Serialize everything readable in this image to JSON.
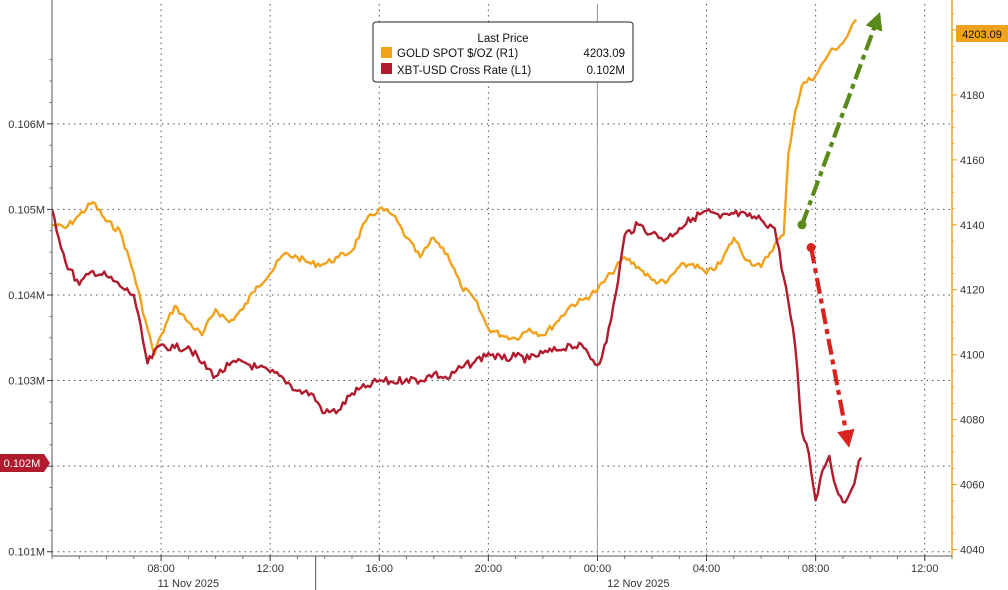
{
  "chart_data": {
    "type": "line",
    "legend": {
      "title": "Last Price",
      "placement": "top-center",
      "entries": [
        {
          "name": "GOLD SPOT $/OZ  (R1)",
          "value": "4203.09",
          "color": "#f0a21c"
        },
        {
          "name": "XBT-USD Cross Rate  (L1)",
          "value": "0.102M",
          "color": "#b01c2e"
        }
      ]
    },
    "x_axis": {
      "start": "2025-11-11T04:00",
      "end": "2025-11-12T13:00",
      "tick_labels": [
        "08:00",
        "12:00",
        "16:00",
        "20:00",
        "00:00",
        "04:00",
        "08:00",
        "12:00"
      ],
      "tick_times": [
        "2025-11-11T08:00",
        "2025-11-11T12:00",
        "2025-11-11T16:00",
        "2025-11-11T20:00",
        "2025-11-12T00:00",
        "2025-11-12T04:00",
        "2025-11-12T08:00",
        "2025-11-12T12:00"
      ],
      "date_labels": [
        {
          "time": "2025-11-11T09:00",
          "text": "11 Nov 2025"
        },
        {
          "time": "2025-11-12T01:30",
          "text": "12 Nov 2025"
        }
      ],
      "day_boundary": "2025-11-12T00:00"
    },
    "y_left": {
      "unit": "M",
      "ylim": [
        0.10095,
        0.1074
      ],
      "tick_values": [
        0.101,
        0.102,
        0.103,
        0.104,
        0.105,
        0.106
      ],
      "tick_labels": [
        "0.101M",
        "0.102M",
        "0.103M",
        "0.104M",
        "0.105M",
        "0.106M"
      ],
      "last_value_badge": "0.102M"
    },
    "y_right": {
      "ylim": [
        4038,
        4208
      ],
      "tick_values": [
        4040,
        4060,
        4080,
        4100,
        4120,
        4140,
        4160,
        4180,
        4200
      ],
      "tick_labels": [
        "4040",
        "4060",
        "4080",
        "4100",
        "4120",
        "4140",
        "4160",
        "4180",
        "4200"
      ],
      "last_value_badge": "4203.09"
    },
    "grid": true,
    "series": [
      {
        "name": "GOLD SPOT $/OZ  (R1)",
        "axis": "right",
        "color": "#f0a21c",
        "points": [
          [
            "2025-11-11T04:00",
            4140
          ],
          [
            "2025-11-11T04:30",
            4139
          ],
          [
            "2025-11-11T05:00",
            4143
          ],
          [
            "2025-11-11T05:30",
            4147
          ],
          [
            "2025-11-11T06:00",
            4141
          ],
          [
            "2025-11-11T06:30",
            4138
          ],
          [
            "2025-11-11T07:00",
            4125
          ],
          [
            "2025-11-11T07:30",
            4108
          ],
          [
            "2025-11-11T07:45",
            4100
          ],
          [
            "2025-11-11T08:00",
            4106
          ],
          [
            "2025-11-11T08:30",
            4115
          ],
          [
            "2025-11-11T09:00",
            4110
          ],
          [
            "2025-11-11T09:30",
            4106
          ],
          [
            "2025-11-11T10:00",
            4114
          ],
          [
            "2025-11-11T10:30",
            4110
          ],
          [
            "2025-11-11T11:00",
            4114
          ],
          [
            "2025-11-11T11:30",
            4121
          ],
          [
            "2025-11-11T12:00",
            4125
          ],
          [
            "2025-11-11T12:30",
            4131
          ],
          [
            "2025-11-11T13:00",
            4130
          ],
          [
            "2025-11-11T13:30",
            4128
          ],
          [
            "2025-11-11T14:00",
            4128
          ],
          [
            "2025-11-11T14:30",
            4130
          ],
          [
            "2025-11-11T15:00",
            4132
          ],
          [
            "2025-11-11T15:30",
            4141
          ],
          [
            "2025-11-11T16:00",
            4145
          ],
          [
            "2025-11-11T16:30",
            4143
          ],
          [
            "2025-11-11T17:00",
            4136
          ],
          [
            "2025-11-11T17:30",
            4130
          ],
          [
            "2025-11-11T18:00",
            4136
          ],
          [
            "2025-11-11T18:30",
            4131
          ],
          [
            "2025-11-11T19:00",
            4121
          ],
          [
            "2025-11-11T19:30",
            4117
          ],
          [
            "2025-11-11T20:00",
            4108
          ],
          [
            "2025-11-11T20:30",
            4106
          ],
          [
            "2025-11-11T21:00",
            4105
          ],
          [
            "2025-11-11T21:30",
            4108
          ],
          [
            "2025-11-11T22:00",
            4106
          ],
          [
            "2025-11-11T22:30",
            4110
          ],
          [
            "2025-11-11T23:00",
            4115
          ],
          [
            "2025-11-11T23:30",
            4117
          ],
          [
            "2025-11-12T00:00",
            4120
          ],
          [
            "2025-11-12T00:30",
            4125
          ],
          [
            "2025-11-12T01:00",
            4130
          ],
          [
            "2025-11-12T01:30",
            4127
          ],
          [
            "2025-11-12T02:00",
            4123
          ],
          [
            "2025-11-12T02:30",
            4122
          ],
          [
            "2025-11-12T03:00",
            4127
          ],
          [
            "2025-11-12T03:30",
            4128
          ],
          [
            "2025-11-12T04:00",
            4125
          ],
          [
            "2025-11-12T04:30",
            4128
          ],
          [
            "2025-11-12T05:00",
            4136
          ],
          [
            "2025-11-12T05:30",
            4129
          ],
          [
            "2025-11-12T06:00",
            4127
          ],
          [
            "2025-11-12T06:30",
            4134
          ],
          [
            "2025-11-12T06:50",
            4137
          ],
          [
            "2025-11-12T07:00",
            4162
          ],
          [
            "2025-11-12T07:15",
            4175
          ],
          [
            "2025-11-12T07:30",
            4183
          ],
          [
            "2025-11-12T08:00",
            4186
          ],
          [
            "2025-11-12T08:30",
            4193
          ],
          [
            "2025-11-12T09:00",
            4196
          ],
          [
            "2025-11-12T09:30",
            4203.09
          ]
        ]
      },
      {
        "name": "XBT-USD Cross Rate  (L1)",
        "axis": "left",
        "color": "#b01c2e",
        "points": [
          [
            "2025-11-11T04:00",
            0.105
          ],
          [
            "2025-11-11T04:30",
            0.10438
          ],
          [
            "2025-11-11T05:00",
            0.10412
          ],
          [
            "2025-11-11T05:30",
            0.10428
          ],
          [
            "2025-11-11T06:00",
            0.10422
          ],
          [
            "2025-11-11T06:30",
            0.1041
          ],
          [
            "2025-11-11T07:00",
            0.104
          ],
          [
            "2025-11-11T07:30",
            0.1032
          ],
          [
            "2025-11-11T08:00",
            0.10342
          ],
          [
            "2025-11-11T08:30",
            0.10338
          ],
          [
            "2025-11-11T09:00",
            0.1034
          ],
          [
            "2025-11-11T09:30",
            0.1032
          ],
          [
            "2025-11-11T10:00",
            0.10305
          ],
          [
            "2025-11-11T10:30",
            0.10318
          ],
          [
            "2025-11-11T11:00",
            0.10322
          ],
          [
            "2025-11-11T11:30",
            0.10315
          ],
          [
            "2025-11-11T12:00",
            0.1031
          ],
          [
            "2025-11-11T12:30",
            0.10302
          ],
          [
            "2025-11-11T13:00",
            0.10288
          ],
          [
            "2025-11-11T13:30",
            0.10285
          ],
          [
            "2025-11-11T14:00",
            0.10262
          ],
          [
            "2025-11-11T14:30",
            0.10265
          ],
          [
            "2025-11-11T15:00",
            0.10285
          ],
          [
            "2025-11-11T15:30",
            0.10292
          ],
          [
            "2025-11-11T16:00",
            0.103
          ],
          [
            "2025-11-11T16:30",
            0.10298
          ],
          [
            "2025-11-11T17:00",
            0.10302
          ],
          [
            "2025-11-11T17:30",
            0.103
          ],
          [
            "2025-11-11T18:00",
            0.10308
          ],
          [
            "2025-11-11T18:30",
            0.10302
          ],
          [
            "2025-11-11T19:00",
            0.10315
          ],
          [
            "2025-11-11T19:30",
            0.10322
          ],
          [
            "2025-11-11T20:00",
            0.10332
          ],
          [
            "2025-11-11T20:30",
            0.10325
          ],
          [
            "2025-11-11T21:00",
            0.10328
          ],
          [
            "2025-11-11T21:30",
            0.10325
          ],
          [
            "2025-11-11T22:00",
            0.10332
          ],
          [
            "2025-11-11T22:30",
            0.10335
          ],
          [
            "2025-11-11T23:00",
            0.10342
          ],
          [
            "2025-11-11T23:30",
            0.10338
          ],
          [
            "2025-11-12T00:00",
            0.10318
          ],
          [
            "2025-11-12T00:20",
            0.10345
          ],
          [
            "2025-11-12T00:40",
            0.104
          ],
          [
            "2025-11-12T01:00",
            0.1047
          ],
          [
            "2025-11-12T01:30",
            0.10482
          ],
          [
            "2025-11-12T02:00",
            0.10472
          ],
          [
            "2025-11-12T02:30",
            0.10465
          ],
          [
            "2025-11-12T03:00",
            0.10478
          ],
          [
            "2025-11-12T03:30",
            0.1049
          ],
          [
            "2025-11-12T04:00",
            0.10498
          ],
          [
            "2025-11-12T04:30",
            0.1049
          ],
          [
            "2025-11-12T05:00",
            0.10495
          ],
          [
            "2025-11-12T05:30",
            0.10492
          ],
          [
            "2025-11-12T06:00",
            0.10488
          ],
          [
            "2025-11-12T06:30",
            0.10478
          ],
          [
            "2025-11-12T07:00",
            0.10392
          ],
          [
            "2025-11-12T07:15",
            0.1034
          ],
          [
            "2025-11-12T07:30",
            0.1024
          ],
          [
            "2025-11-12T07:45",
            0.10215
          ],
          [
            "2025-11-12T08:00",
            0.1016
          ],
          [
            "2025-11-12T08:15",
            0.10195
          ],
          [
            "2025-11-12T08:30",
            0.10212
          ],
          [
            "2025-11-12T08:45",
            0.10175
          ],
          [
            "2025-11-12T09:00",
            0.10158
          ],
          [
            "2025-11-12T09:15",
            0.10168
          ],
          [
            "2025-11-12T09:30",
            0.10192
          ],
          [
            "2025-11-12T09:40",
            0.1021
          ]
        ]
      }
    ],
    "annotations": [
      {
        "kind": "arrow",
        "style": "dashed",
        "color": "#5a8a1a",
        "axis": "right",
        "from": [
          "2025-11-12T07:30",
          4140
        ],
        "to": [
          "2025-11-12T10:15",
          4203
        ]
      },
      {
        "kind": "arrow",
        "style": "dashed",
        "color": "#d8231e",
        "axis": "right",
        "from": [
          "2025-11-12T07:50",
          4133
        ],
        "to": [
          "2025-11-12T09:10",
          4074
        ]
      }
    ]
  }
}
